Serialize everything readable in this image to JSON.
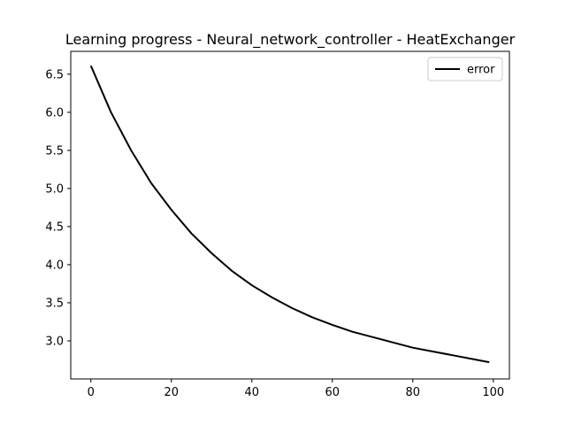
{
  "chart_data": {
    "type": "line",
    "title": "Learning progress - Neural_network_controller - HeatExchanger",
    "xlabel": "",
    "ylabel": "",
    "xlim": [
      -5,
      104
    ],
    "ylim": [
      2.5,
      6.8
    ],
    "xticks": [
      0,
      20,
      40,
      60,
      80,
      100
    ],
    "xtick_labels": [
      "0",
      "20",
      "40",
      "60",
      "80",
      "100"
    ],
    "yticks": [
      3.0,
      3.5,
      4.0,
      4.5,
      5.0,
      5.5,
      6.0,
      6.5
    ],
    "ytick_labels": [
      "3.0",
      "3.5",
      "4.0",
      "4.5",
      "5.0",
      "5.5",
      "6.0",
      "6.5"
    ],
    "grid": false,
    "legend_position": "upper right",
    "series": [
      {
        "name": "error",
        "color": "#000000",
        "x": [
          0,
          5,
          10,
          15,
          20,
          25,
          30,
          35,
          40,
          45,
          50,
          55,
          60,
          65,
          70,
          75,
          80,
          85,
          90,
          95,
          99
        ],
        "y": [
          6.61,
          6.0,
          5.5,
          5.07,
          4.72,
          4.41,
          4.15,
          3.92,
          3.73,
          3.57,
          3.43,
          3.31,
          3.21,
          3.12,
          3.05,
          2.98,
          2.91,
          2.86,
          2.81,
          2.76,
          2.72
        ]
      }
    ]
  }
}
